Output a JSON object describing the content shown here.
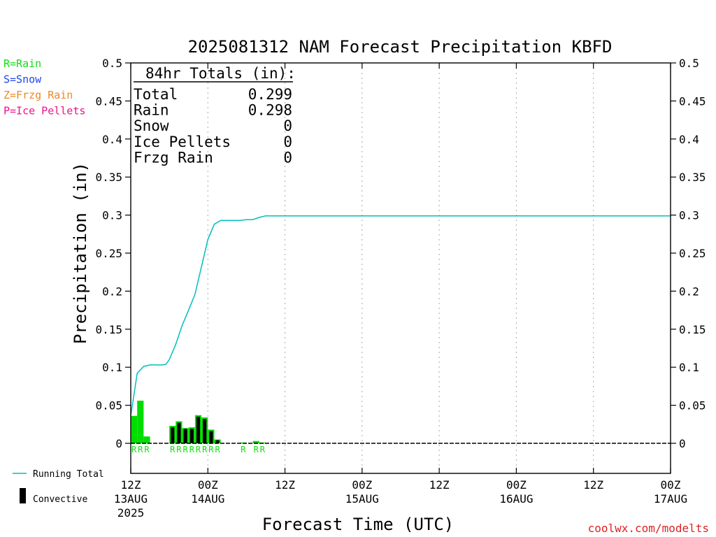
{
  "chart_data": {
    "type": "bar",
    "title": "2025081312 NAM Forecast Precipitation KBFD",
    "xlabel": "Forecast Time (UTC)",
    "ylabel": "Precipitation (in)",
    "ylim": [
      0,
      0.5
    ],
    "y_ticks": [
      "0",
      "0.05",
      "0.1",
      "0.15",
      "0.2",
      "0.25",
      "0.3",
      "0.35",
      "0.4",
      "0.45",
      "0.5"
    ],
    "x_range_hours": [
      0,
      84
    ],
    "grid": "vertical dotted lines every 12 hours",
    "x_ticks": [
      {
        "hour": 0,
        "label": "12Z",
        "sub": "13AUG",
        "sub2": "2025"
      },
      {
        "hour": 12,
        "label": "00Z",
        "sub": "14AUG",
        "sub2": ""
      },
      {
        "hour": 24,
        "label": "12Z",
        "sub": "",
        "sub2": ""
      },
      {
        "hour": 36,
        "label": "00Z",
        "sub": "15AUG",
        "sub2": ""
      },
      {
        "hour": 48,
        "label": "12Z",
        "sub": "",
        "sub2": ""
      },
      {
        "hour": 60,
        "label": "00Z",
        "sub": "16AUG",
        "sub2": ""
      },
      {
        "hour": 72,
        "label": "12Z",
        "sub": "",
        "sub2": ""
      },
      {
        "hour": 84,
        "label": "00Z",
        "sub": "17AUG",
        "sub2": ""
      }
    ],
    "precip_bars": [
      {
        "hour": 0.5,
        "total": 0.036,
        "convective": 0,
        "type": "R"
      },
      {
        "hour": 1.5,
        "total": 0.056,
        "convective": 0,
        "type": "R"
      },
      {
        "hour": 2.5,
        "total": 0.009,
        "convective": 0,
        "type": "R"
      },
      {
        "hour": 6.5,
        "total": 0.023,
        "convective": 0.021,
        "type": "R"
      },
      {
        "hour": 7.5,
        "total": 0.029,
        "convective": 0.027,
        "type": "R"
      },
      {
        "hour": 8.5,
        "total": 0.02,
        "convective": 0.019,
        "type": "R"
      },
      {
        "hour": 9.5,
        "total": 0.021,
        "convective": 0.019,
        "type": "R"
      },
      {
        "hour": 10.5,
        "total": 0.037,
        "convective": 0.035,
        "type": "R"
      },
      {
        "hour": 11.5,
        "total": 0.034,
        "convective": 0.032,
        "type": "R"
      },
      {
        "hour": 12.5,
        "total": 0.018,
        "convective": 0.016,
        "type": "R"
      },
      {
        "hour": 13.5,
        "total": 0.005,
        "convective": 0.004,
        "type": "R"
      },
      {
        "hour": 17.5,
        "total": 0.001,
        "convective": 0,
        "type": "R"
      },
      {
        "hour": 19.5,
        "total": 0.003,
        "convective": 0,
        "type": "R"
      },
      {
        "hour": 20.5,
        "total": 0.001,
        "convective": 0,
        "type": "R"
      }
    ],
    "running_total": {
      "name": "Running Total",
      "x": [
        0,
        1,
        2,
        3,
        5,
        5.5,
        6,
        7,
        8,
        9,
        10,
        11,
        12,
        13,
        14,
        15,
        17,
        18,
        19,
        20,
        21,
        84
      ],
      "y": [
        0.036,
        0.092,
        0.101,
        0.103,
        0.103,
        0.104,
        0.11,
        0.13,
        0.155,
        0.175,
        0.196,
        0.232,
        0.268,
        0.288,
        0.293,
        0.293,
        0.293,
        0.294,
        0.294,
        0.297,
        0.299,
        0.299
      ]
    },
    "totals_box": {
      "heading": "84hr Totals (in):",
      "rows": [
        {
          "label": "Total",
          "value": "0.299"
        },
        {
          "label": "Rain",
          "value": "0.298"
        },
        {
          "label": "Snow",
          "value": "0"
        },
        {
          "label": "Ice Pellets",
          "value": "0"
        },
        {
          "label": "Frzg Rain",
          "value": "0"
        }
      ]
    },
    "type_legend": [
      {
        "text": "R=Rain",
        "color": "#11dd11"
      },
      {
        "text": "S=Snow",
        "color": "#2244ee"
      },
      {
        "text": "Z=Frzg Rain",
        "color": "#ee8822"
      },
      {
        "text": "P=Ice Pellets",
        "color": "#ee1188"
      }
    ],
    "bottom_legend": [
      {
        "text": "Running Total",
        "kind": "line",
        "color": "#00bfbf"
      },
      {
        "text": "Convective",
        "kind": "bar",
        "color": "#000000"
      }
    ],
    "colors": {
      "rain_bar": "#00dd00",
      "convective": "#000000",
      "running_total": "#00bfbf",
      "type_letter": "#11dd11",
      "credit": "#dd2222"
    },
    "credit": "coolwx.com/modelts"
  }
}
